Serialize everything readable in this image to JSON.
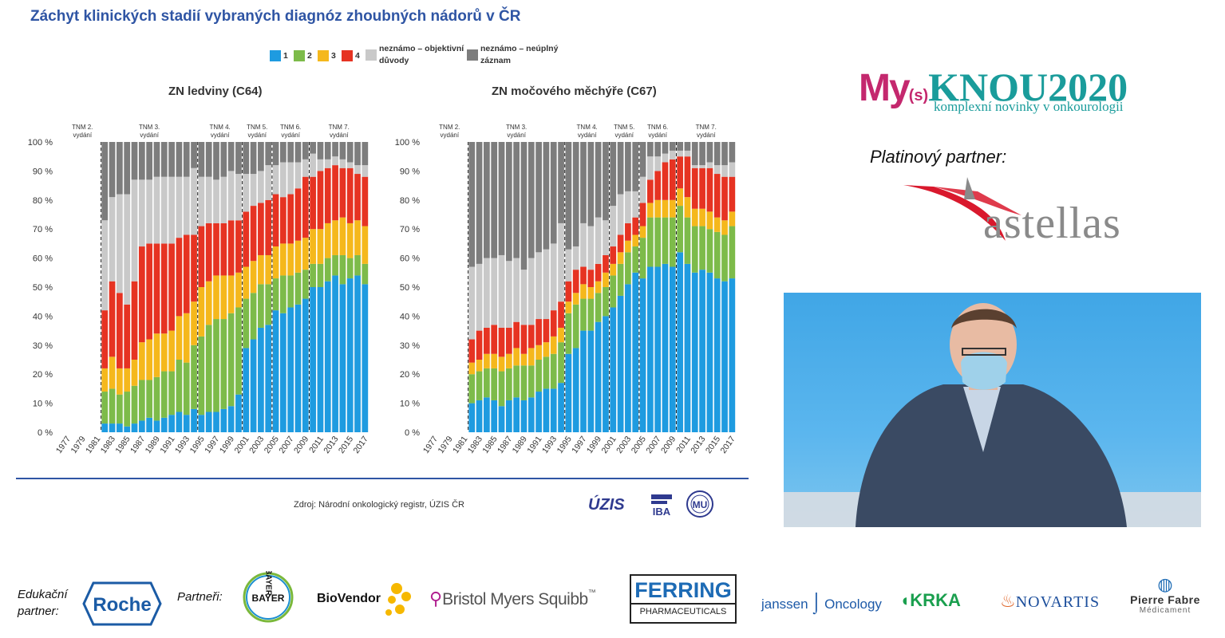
{
  "slide": {
    "title": "Záchyt klinických stadií vybraných diagnóz zhoubných nádorů v ČR",
    "source": "Zdroj: Národní onkologický registr, ÚZIS ČR"
  },
  "legend": [
    {
      "label": "1",
      "color": "#1e9be0"
    },
    {
      "label": "2",
      "color": "#7dbb4a"
    },
    {
      "label": "3",
      "color": "#f5b81c"
    },
    {
      "label": "4",
      "color": "#e63322"
    },
    {
      "label": "neznámo – objektivní důvody",
      "color": "#c9c9c9"
    },
    {
      "label": "neznámo – neúplný záznam",
      "color": "#7d7d7d"
    }
  ],
  "chart_data": [
    {
      "type": "bar",
      "title": "ZN ledviny (C64)",
      "stacked": true,
      "ylim": [
        0,
        100
      ],
      "yticks": [
        "0 %",
        "10 %",
        "20 %",
        "30 %",
        "40 %",
        "50 %",
        "60 %",
        "70 %",
        "80 %",
        "90 %",
        "100 %"
      ],
      "xticks": [
        "1977",
        "1979",
        "1981",
        "1983",
        "1985",
        "1987",
        "1989",
        "1991",
        "1993",
        "1995",
        "1997",
        "1999",
        "2001",
        "2003",
        "2005",
        "2007",
        "2009",
        "2011",
        "2013",
        "2015",
        "2017"
      ],
      "categories": [
        "1977",
        "1978",
        "1979",
        "1980",
        "1981",
        "1982",
        "1983",
        "1984",
        "1985",
        "1986",
        "1987",
        "1988",
        "1989",
        "1990",
        "1991",
        "1992",
        "1993",
        "1994",
        "1995",
        "1996",
        "1997",
        "1998",
        "1999",
        "2000",
        "2001",
        "2002",
        "2003",
        "2004",
        "2005",
        "2006",
        "2007",
        "2008",
        "2009",
        "2010",
        "2011",
        "2012",
        "2013",
        "2014",
        "2015",
        "2016",
        "2017"
      ],
      "tnm_periods": [
        {
          "label": "TNM 2. vydání",
          "start": "1977",
          "end": "1981"
        },
        {
          "label": "TNM 3. vydání",
          "start": "1982",
          "end": "1994"
        },
        {
          "label": "TNM 4. vydání",
          "start": "1995",
          "end": "2000"
        },
        {
          "label": "TNM 5. vydání",
          "start": "2001",
          "end": "2004"
        },
        {
          "label": "TNM 6. vydání",
          "start": "2005",
          "end": "2009"
        },
        {
          "label": "TNM 7. vydání",
          "start": "2010",
          "end": "2017"
        }
      ],
      "series": [
        {
          "name": "1",
          "values": [
            0,
            0,
            0,
            0,
            0,
            3,
            3,
            3,
            2,
            3,
            4,
            5,
            4,
            5,
            6,
            7,
            6,
            8,
            6,
            7,
            7,
            8,
            9,
            13,
            29,
            32,
            36,
            37,
            42,
            41,
            43,
            44,
            46,
            50,
            50,
            52,
            54,
            51,
            53,
            54,
            51
          ]
        },
        {
          "name": "2",
          "values": [
            0,
            0,
            0,
            0,
            0,
            11,
            12,
            10,
            12,
            13,
            14,
            13,
            15,
            16,
            15,
            18,
            18,
            22,
            27,
            30,
            32,
            31,
            32,
            30,
            17,
            16,
            15,
            14,
            11,
            13,
            11,
            11,
            10,
            8,
            8,
            8,
            7,
            10,
            7,
            7,
            7
          ]
        },
        {
          "name": "3",
          "values": [
            0,
            0,
            0,
            0,
            0,
            8,
            11,
            9,
            8,
            9,
            13,
            14,
            15,
            13,
            14,
            15,
            17,
            15,
            17,
            15,
            15,
            15,
            13,
            12,
            11,
            11,
            10,
            10,
            11,
            11,
            11,
            11,
            11,
            12,
            12,
            12,
            12,
            13,
            12,
            12,
            13
          ]
        },
        {
          "name": "4",
          "values": [
            0,
            0,
            0,
            0,
            0,
            20,
            26,
            26,
            22,
            27,
            33,
            33,
            31,
            31,
            30,
            27,
            27,
            23,
            21,
            20,
            18,
            18,
            19,
            18,
            19,
            19,
            18,
            19,
            18,
            16,
            17,
            18,
            21,
            18,
            20,
            19,
            19,
            17,
            19,
            16,
            17
          ]
        },
        {
          "name": "neznámo – objektivní důvody",
          "values": [
            0,
            0,
            0,
            0,
            0,
            31,
            29,
            34,
            38,
            35,
            23,
            22,
            23,
            23,
            23,
            21,
            20,
            23,
            17,
            16,
            15,
            16,
            17,
            16,
            13,
            11,
            11,
            12,
            10,
            12,
            11,
            9,
            6,
            8,
            4,
            3,
            3,
            3,
            2,
            3,
            4
          ]
        },
        {
          "name": "neznámo – neúplný záznam",
          "values": [
            0,
            0,
            0,
            0,
            0,
            27,
            19,
            18,
            18,
            13,
            13,
            13,
            12,
            12,
            12,
            12,
            12,
            9,
            12,
            12,
            13,
            12,
            10,
            11,
            11,
            11,
            10,
            8,
            8,
            7,
            7,
            7,
            6,
            4,
            6,
            6,
            5,
            6,
            7,
            8,
            8
          ]
        }
      ]
    },
    {
      "type": "bar",
      "title": "ZN močového měchýře (C67)",
      "stacked": true,
      "ylim": [
        0,
        100
      ],
      "yticks": [
        "0 %",
        "10 %",
        "20 %",
        "30 %",
        "40 %",
        "50 %",
        "60 %",
        "70 %",
        "80 %",
        "90 %",
        "100 %"
      ],
      "xticks": [
        "1977",
        "1979",
        "1981",
        "1983",
        "1985",
        "1987",
        "1989",
        "1991",
        "1993",
        "1995",
        "1997",
        "1999",
        "2001",
        "2003",
        "2005",
        "2007",
        "2009",
        "2011",
        "2013",
        "2015",
        "2017"
      ],
      "categories": [
        "1977",
        "1978",
        "1979",
        "1980",
        "1981",
        "1982",
        "1983",
        "1984",
        "1985",
        "1986",
        "1987",
        "1988",
        "1989",
        "1990",
        "1991",
        "1992",
        "1993",
        "1994",
        "1995",
        "1996",
        "1997",
        "1998",
        "1999",
        "2000",
        "2001",
        "2002",
        "2003",
        "2004",
        "2005",
        "2006",
        "2007",
        "2008",
        "2009",
        "2010",
        "2011",
        "2012",
        "2013",
        "2014",
        "2015",
        "2016",
        "2017"
      ],
      "tnm_periods": [
        {
          "label": "TNM 2. vydání",
          "start": "1977",
          "end": "1981"
        },
        {
          "label": "TNM 3. vydání",
          "start": "1982",
          "end": "1994"
        },
        {
          "label": "TNM 4. vydání",
          "start": "1995",
          "end": "2000"
        },
        {
          "label": "TNM 5. vydání",
          "start": "2001",
          "end": "2004"
        },
        {
          "label": "TNM 6. vydání",
          "start": "2005",
          "end": "2009"
        },
        {
          "label": "TNM 7. vydání",
          "start": "2010",
          "end": "2017"
        }
      ],
      "series": [
        {
          "name": "1",
          "values": [
            0,
            0,
            0,
            0,
            0,
            10,
            11,
            12,
            11,
            9,
            11,
            12,
            11,
            12,
            14,
            15,
            15,
            17,
            27,
            29,
            35,
            35,
            38,
            40,
            43,
            47,
            51,
            55,
            53,
            57,
            57,
            58,
            57,
            62,
            58,
            55,
            56,
            55,
            53,
            52,
            53
          ]
        },
        {
          "name": "2",
          "values": [
            0,
            0,
            0,
            0,
            0,
            10,
            10,
            10,
            11,
            12,
            11,
            11,
            12,
            11,
            11,
            11,
            12,
            14,
            14,
            15,
            11,
            11,
            10,
            10,
            11,
            11,
            11,
            9,
            14,
            17,
            17,
            16,
            17,
            16,
            16,
            16,
            15,
            15,
            16,
            16,
            18
          ]
        },
        {
          "name": "3",
          "values": [
            0,
            0,
            0,
            0,
            0,
            4,
            4,
            5,
            5,
            5,
            5,
            6,
            4,
            6,
            5,
            5,
            6,
            5,
            4,
            4,
            5,
            4,
            4,
            5,
            4,
            4,
            4,
            4,
            4,
            5,
            6,
            6,
            6,
            6,
            7,
            6,
            6,
            6,
            5,
            5,
            5
          ]
        },
        {
          "name": "4",
          "values": [
            0,
            0,
            0,
            0,
            0,
            8,
            10,
            9,
            10,
            10,
            9,
            9,
            10,
            8,
            9,
            8,
            9,
            9,
            7,
            8,
            6,
            6,
            6,
            6,
            6,
            6,
            6,
            6,
            8,
            8,
            10,
            13,
            14,
            11,
            14,
            14,
            14,
            15,
            15,
            15,
            12
          ]
        },
        {
          "name": "neznámo – objektivní důvody",
          "values": [
            0,
            0,
            0,
            0,
            0,
            25,
            23,
            24,
            23,
            25,
            23,
            22,
            19,
            23,
            23,
            24,
            23,
            27,
            11,
            8,
            15,
            15,
            16,
            12,
            14,
            14,
            11,
            9,
            9,
            8,
            5,
            3,
            3,
            2,
            2,
            1,
            1,
            2,
            3,
            4,
            5
          ]
        },
        {
          "name": "neznámo – neúplný záznam",
          "values": [
            0,
            0,
            0,
            0,
            0,
            43,
            42,
            40,
            40,
            39,
            41,
            40,
            44,
            40,
            38,
            37,
            35,
            28,
            37,
            36,
            28,
            29,
            26,
            27,
            22,
            18,
            17,
            17,
            12,
            5,
            5,
            4,
            3,
            3,
            3,
            8,
            8,
            7,
            8,
            8,
            7
          ]
        }
      ]
    }
  ],
  "logos": {
    "uzis": "ÚZIS",
    "iba": "IBA",
    "mu": "MU"
  },
  "branding": {
    "mys_my": "My",
    "mys_s": "(s)",
    "mys_knou": "KNOU",
    "mys_year": "2020",
    "mys_subtitle": "komplexní novinky v onkourologii",
    "platinum": "Platinový partner:",
    "astellas": "astellas"
  },
  "footer": {
    "edu_label_1": "Edukační",
    "edu_label_2": "partner:",
    "roche": "Roche",
    "partners_label": "Partneři:",
    "bayer_h": "BAYER",
    "bayer_v": "BAYER",
    "biovendor": "BioVendor",
    "bms": "Bristol Myers Squibb",
    "bms_tm": "™",
    "ferring_1": "FERRING",
    "ferring_2": "PHARMACEUTICALS",
    "janssen": "janssen",
    "janssen_onc": "Oncology",
    "krka": "KRKA",
    "novartis": "NOVARTIS",
    "pierre_1": "Pierre Fabre",
    "pierre_2": "Médicament"
  },
  "colors": {
    "title_blue": "#2f55a4",
    "mys_magenta": "#c4286e",
    "mys_teal": "#1a9c9b",
    "astellas_red": "#d9192d",
    "astellas_grey": "#8a8a8a"
  }
}
